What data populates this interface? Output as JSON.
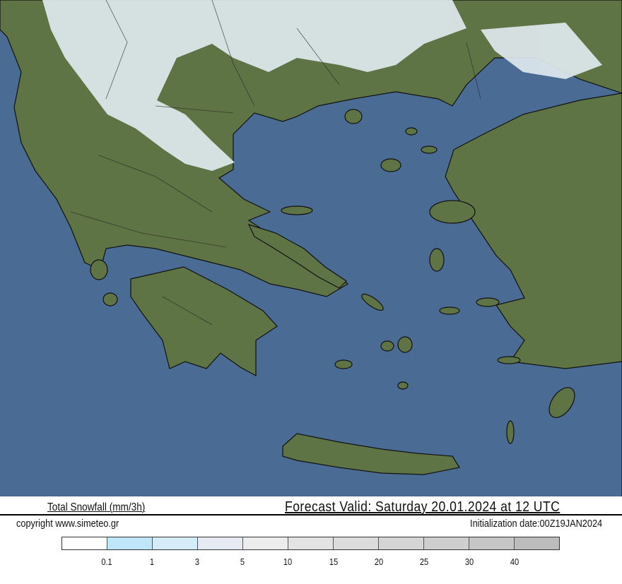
{
  "header": {
    "title": "Total Snowfall (mm/3h)",
    "forecast_valid": "Forecast Valid:  Saturday 20.01.2024 at 12 UTC",
    "copyright": "copyright www.simeteo.gr",
    "initialization": "Initialization date:00Z19JAN2024"
  },
  "map": {
    "region": "Greece and Aegean Sea",
    "colors": {
      "sea": "#4a6b93",
      "land": "#5f7445",
      "snow": "#dfe9ee",
      "border": "#111111"
    }
  },
  "legend": {
    "ticks": [
      "0.1",
      "1",
      "3",
      "5",
      "10",
      "15",
      "20",
      "25",
      "30",
      "40"
    ],
    "colors": [
      "#ffffff",
      "#bfe6f8",
      "#d3ecf8",
      "#e6eaf2",
      "#ececec",
      "#e3e3e3",
      "#dcdcdc",
      "#d5d5d5",
      "#cecece",
      "#c6c6c6",
      "#bcbcbc"
    ]
  }
}
